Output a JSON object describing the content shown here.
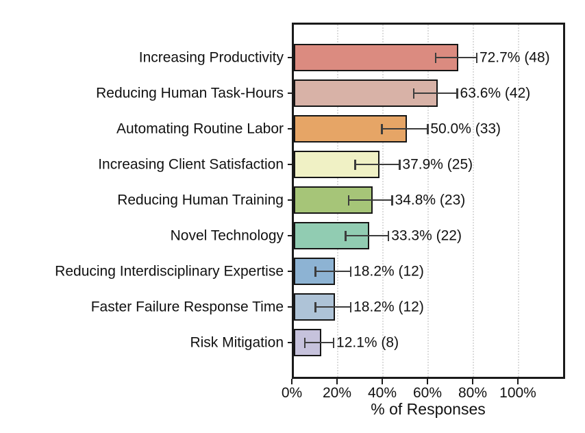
{
  "chart_data": {
    "type": "bar",
    "orientation": "horizontal",
    "xlabel": "% of Responses",
    "xlim": [
      0,
      121
    ],
    "grid": "vertical-dotted",
    "legend": "none",
    "x_ticks": [
      {
        "value": 0,
        "label": "0%"
      },
      {
        "value": 20,
        "label": "20%"
      },
      {
        "value": 40,
        "label": "40%"
      },
      {
        "value": 60,
        "label": "60%"
      },
      {
        "value": 80,
        "label": "80%"
      },
      {
        "value": 100,
        "label": "100%"
      }
    ],
    "bars": [
      {
        "category": "Increasing Productivity",
        "value": 72.7,
        "count": 48,
        "label": "72.7% (48)",
        "ci_low": 63.6,
        "ci_high": 81.8,
        "color": "#db8b80"
      },
      {
        "category": "Reducing Human Task-Hours",
        "value": 63.6,
        "count": 42,
        "label": "63.6% (42)",
        "ci_low": 54.0,
        "ci_high": 73.2,
        "color": "#d8b2a7"
      },
      {
        "category": "Automating Routine Labor",
        "value": 50.0,
        "count": 33,
        "label": "50.0% (33)",
        "ci_low": 39.9,
        "ci_high": 60.1,
        "color": "#e6a566"
      },
      {
        "category": "Increasing Client Satisfaction",
        "value": 37.9,
        "count": 25,
        "label": "37.9% (25)",
        "ci_low": 28.1,
        "ci_high": 47.7,
        "color": "#f0f1c5"
      },
      {
        "category": "Reducing Human Training",
        "value": 34.8,
        "count": 23,
        "label": "34.8% (23)",
        "ci_low": 25.2,
        "ci_high": 44.4,
        "color": "#a6c578"
      },
      {
        "category": "Novel Technology",
        "value": 33.3,
        "count": 22,
        "label": "33.3% (22)",
        "ci_low": 23.8,
        "ci_high": 42.8,
        "color": "#91ccb2"
      },
      {
        "category": "Reducing Interdisciplinary Expertise",
        "value": 18.2,
        "count": 12,
        "label": "18.2% (12)",
        "ci_low": 10.4,
        "ci_high": 26.1,
        "color": "#8db3d3"
      },
      {
        "category": "Faster Failure Response Time",
        "value": 18.2,
        "count": 12,
        "label": "18.2% (12)",
        "ci_low": 10.4,
        "ci_high": 26.1,
        "color": "#aec3d7"
      },
      {
        "category": "Risk Mitigation",
        "value": 12.1,
        "count": 8,
        "label": "12.1% (8)",
        "ci_low": 5.7,
        "ci_high": 18.5,
        "color": "#c6c2dc"
      }
    ],
    "colors": {
      "frame": "#1a1a1a",
      "bar_edge": "#161616",
      "error_bar": "#3c3c3c",
      "gridline": "#dcdcdc",
      "text": "#111111",
      "background": "#ffffff"
    }
  }
}
